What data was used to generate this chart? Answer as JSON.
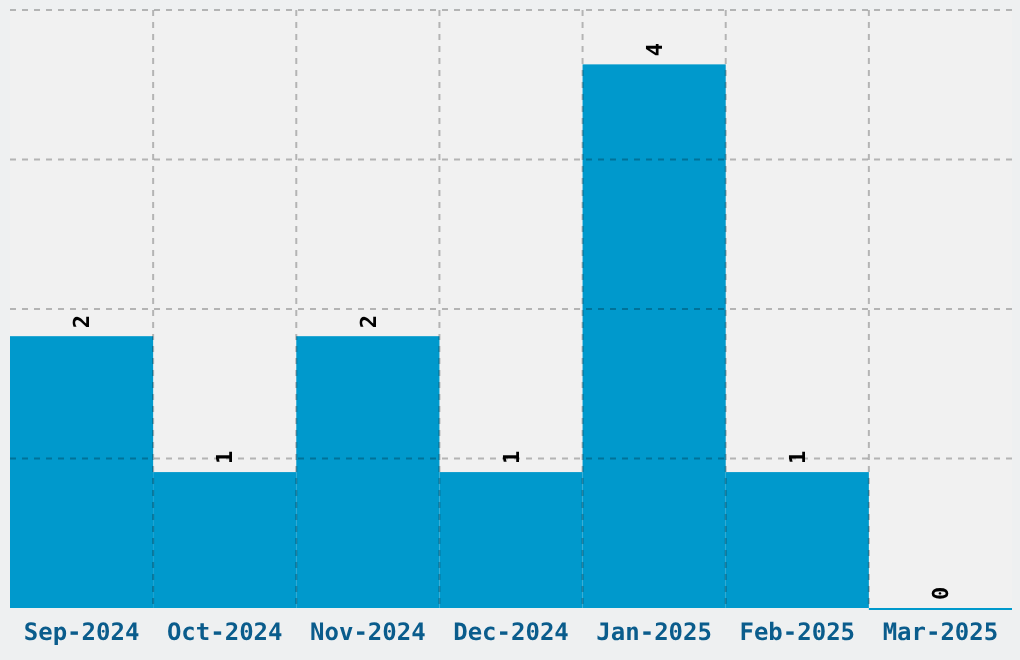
{
  "chart_data": {
    "type": "bar",
    "categories": [
      "Sep-2024",
      "Oct-2024",
      "Nov-2024",
      "Dec-2024",
      "Jan-2025",
      "Feb-2025",
      "Mar-2025"
    ],
    "values": [
      2,
      1,
      2,
      1,
      4,
      1,
      0
    ],
    "color": "#0099cc",
    "data_labels": true,
    "grid": true,
    "ylim": [
      0,
      4.4
    ],
    "yticks": [
      {
        "value": 1.1,
        "label": null
      },
      {
        "value": 2.2,
        "label": null
      },
      {
        "value": 3.3,
        "label": null
      },
      {
        "value": 4.4,
        "label": null
      }
    ],
    "tick_labels": "x"
  }
}
